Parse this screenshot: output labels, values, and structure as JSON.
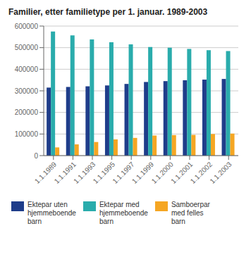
{
  "chart_data": {
    "type": "bar",
    "title": "Familier, etter familietype per 1. januar. 1989-2003",
    "categories": [
      "1.1.1989",
      "1.1.1991",
      "1.1.1993",
      "1.1.1995",
      "1.1.1997",
      "1.1.1999",
      "1.1.2000",
      "1.1.2001",
      "1.1.2002",
      "1.1.2003"
    ],
    "series": [
      {
        "name": "Ektepar uten\nhjemmeboende\nbarn",
        "color": "#1f3d8a",
        "values": [
          315000,
          318000,
          321000,
          325000,
          332000,
          341000,
          345000,
          349000,
          352000,
          355000
        ]
      },
      {
        "name": "Ektepar med\nhjemmeboende\nbarn",
        "color": "#2aacac",
        "values": [
          575000,
          557000,
          538000,
          525000,
          515000,
          503000,
          500000,
          494000,
          488000,
          484000
        ]
      },
      {
        "name": "Samboerpar\nmed felles\nbarn",
        "color": "#f5a623",
        "values": [
          38000,
          52000,
          63000,
          75000,
          82000,
          93000,
          95000,
          96000,
          100000,
          102000
        ]
      }
    ],
    "ylim": [
      0,
      600000
    ],
    "yticks": [
      0,
      100000,
      200000,
      300000,
      400000,
      500000,
      600000
    ],
    "grid": true,
    "legend": "bottom"
  }
}
